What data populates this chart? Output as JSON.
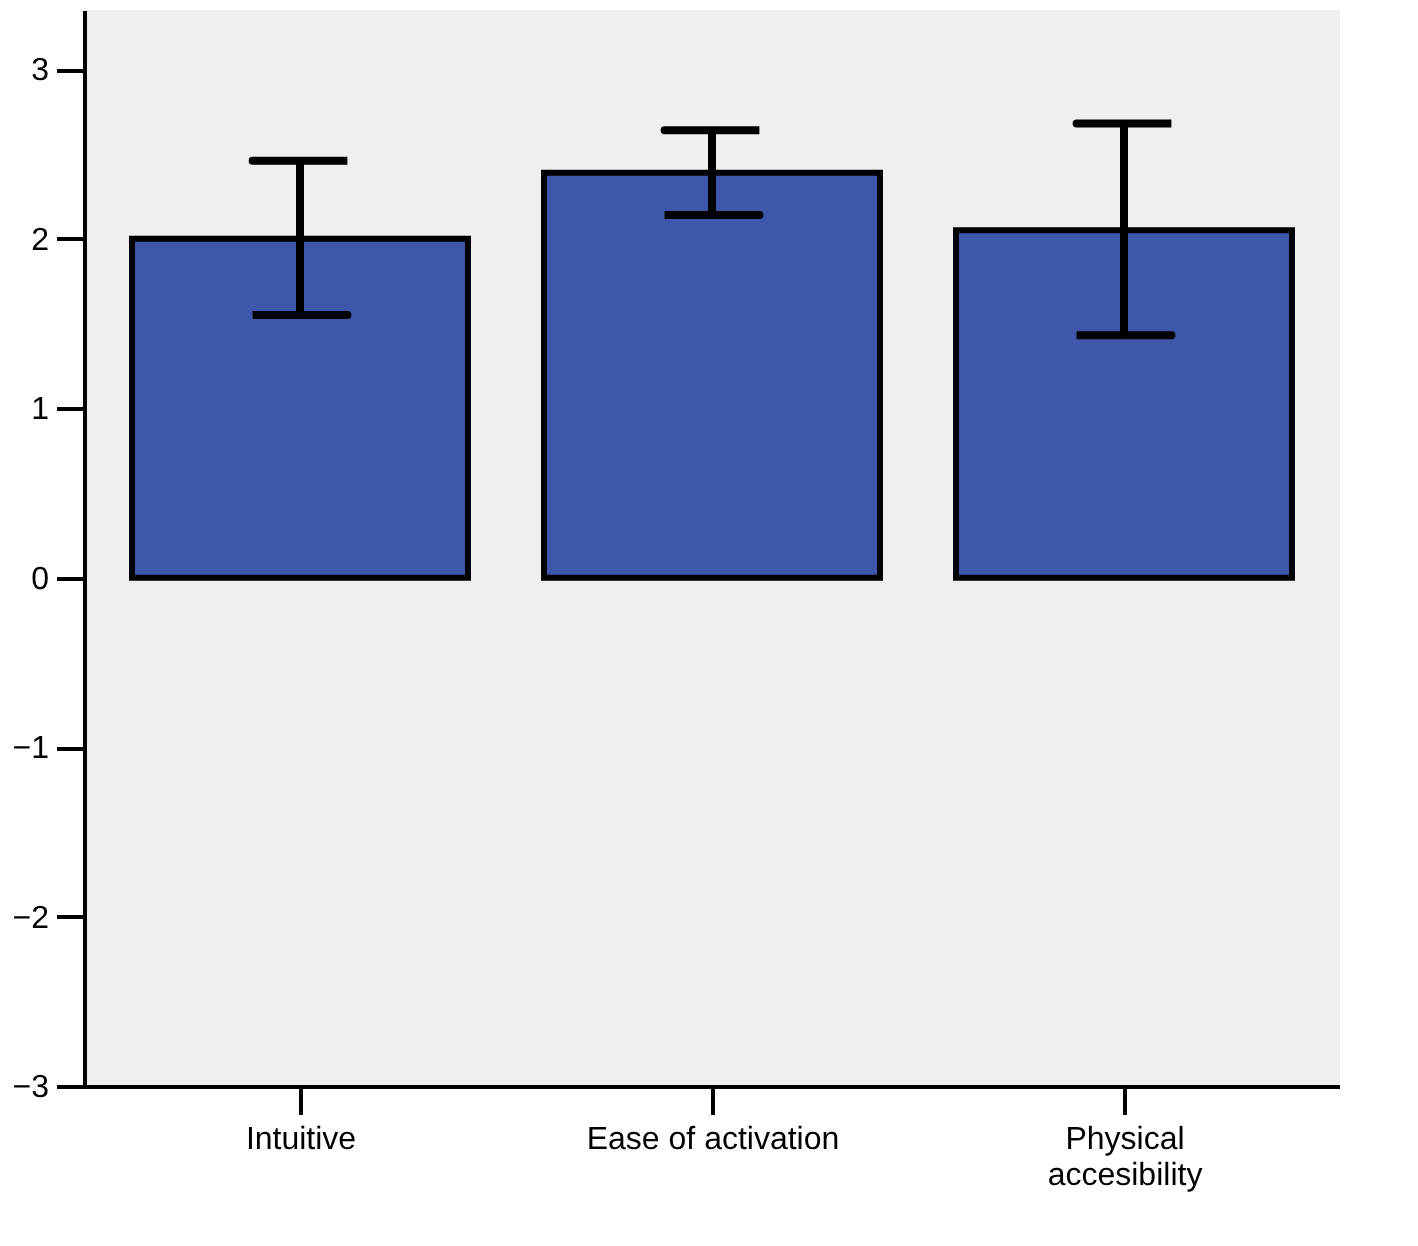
{
  "chart_data": {
    "type": "bar",
    "categories": [
      "Intuitive",
      "Ease of activation",
      "Physical accesibility"
    ],
    "values": [
      2.0,
      2.39,
      2.05
    ],
    "errors": [
      [
        1.55,
        2.46
      ],
      [
        2.14,
        2.64
      ],
      [
        1.43,
        2.68
      ]
    ],
    "color": "#3f57ab",
    "ylim": [
      -3,
      3.35
    ],
    "yticks": [
      -3,
      -2,
      -1,
      0,
      1,
      2,
      3
    ],
    "grid": false
  }
}
